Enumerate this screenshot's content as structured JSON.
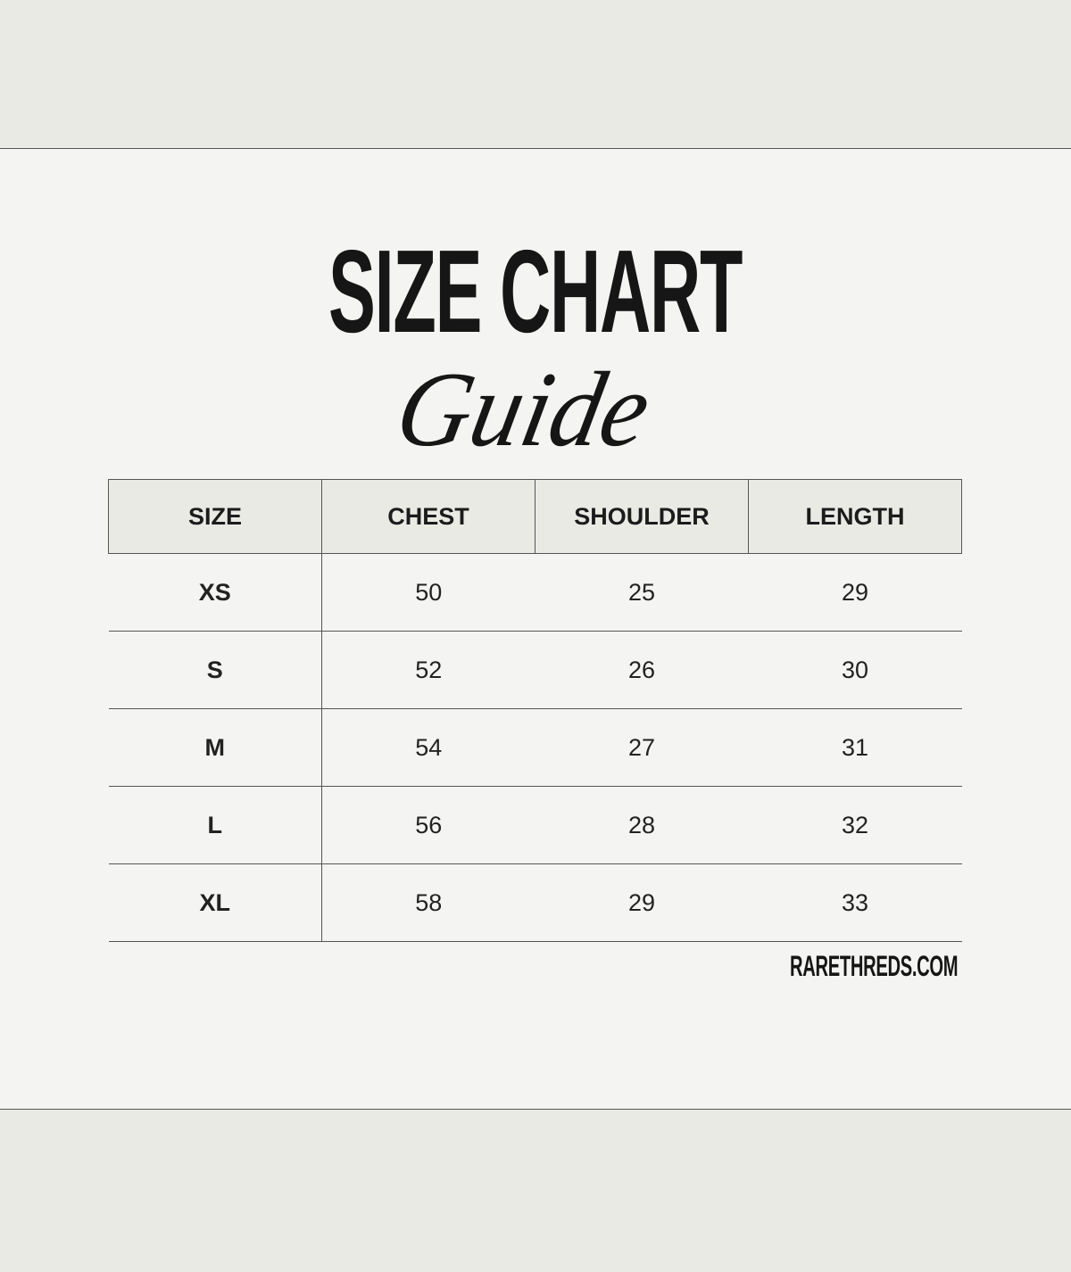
{
  "title": "SIZE CHART",
  "subtitle": "Guide",
  "table": {
    "headers": [
      "SIZE",
      "CHEST",
      "SHOULDER",
      "LENGTH"
    ],
    "rows": [
      [
        "XS",
        "50",
        "25",
        "29"
      ],
      [
        "S",
        "52",
        "26",
        "30"
      ],
      [
        "M",
        "54",
        "27",
        "31"
      ],
      [
        "L",
        "56",
        "28",
        "32"
      ],
      [
        "XL",
        "58",
        "29",
        "33"
      ]
    ]
  },
  "footer": "RARETHREDS.COM",
  "colors": {
    "background": "#f4f4f2",
    "band": "#eaeae5",
    "text": "#1a1a1a"
  }
}
